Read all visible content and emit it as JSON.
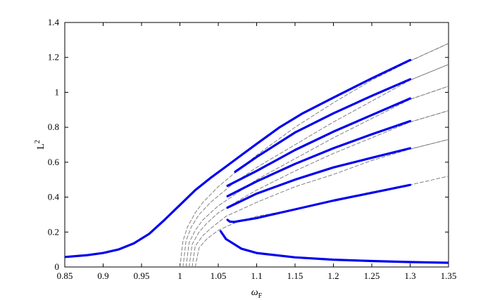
{
  "chart_data": {
    "type": "line",
    "xlabel": "ω",
    "xlabel_sub": "F",
    "ylabel": "L",
    "ylabel_sup": "2",
    "xlim": [
      0.85,
      1.35
    ],
    "ylim": [
      0,
      1.4
    ],
    "grid": false,
    "x_ticks": [
      "0.85",
      "0.9",
      "0.95",
      "1",
      "1.05",
      "1.1",
      "1.15",
      "1.2",
      "1.25",
      "1.3",
      "1.35"
    ],
    "y_ticks": [
      "0",
      "0.2",
      "0.4",
      "0.6",
      "0.8",
      "1",
      "1.2",
      "1.4"
    ],
    "colors": {
      "solid": "#0000ee",
      "dashed": "#808080"
    },
    "series": [
      {
        "style": "solid",
        "points": [
          [
            0.85,
            0.057
          ],
          [
            0.88,
            0.068
          ],
          [
            0.9,
            0.08
          ],
          [
            0.92,
            0.1
          ],
          [
            0.94,
            0.135
          ],
          [
            0.96,
            0.19
          ],
          [
            0.98,
            0.27
          ],
          [
            1.0,
            0.355
          ],
          [
            1.02,
            0.44
          ],
          [
            1.04,
            0.51
          ],
          [
            1.06,
            0.575
          ],
          [
            1.08,
            0.64
          ],
          [
            1.1,
            0.705
          ],
          [
            1.13,
            0.8
          ],
          [
            1.16,
            0.88
          ],
          [
            1.2,
            0.97
          ],
          [
            1.25,
            1.08
          ],
          [
            1.3,
            1.185
          ]
        ]
      },
      {
        "style": "solid",
        "points": [
          [
            1.072,
            0.545
          ],
          [
            1.1,
            0.63
          ],
          [
            1.15,
            0.77
          ],
          [
            1.2,
            0.88
          ],
          [
            1.25,
            0.98
          ],
          [
            1.3,
            1.075
          ]
        ]
      },
      {
        "style": "solid",
        "points": [
          [
            1.062,
            0.465
          ],
          [
            1.1,
            0.55
          ],
          [
            1.15,
            0.67
          ],
          [
            1.2,
            0.775
          ],
          [
            1.25,
            0.87
          ],
          [
            1.3,
            0.965
          ]
        ]
      },
      {
        "style": "solid",
        "points": [
          [
            1.062,
            0.405
          ],
          [
            1.1,
            0.49
          ],
          [
            1.15,
            0.59
          ],
          [
            1.2,
            0.68
          ],
          [
            1.25,
            0.76
          ],
          [
            1.3,
            0.835
          ]
        ]
      },
      {
        "style": "solid",
        "points": [
          [
            1.062,
            0.34
          ],
          [
            1.1,
            0.42
          ],
          [
            1.15,
            0.5
          ],
          [
            1.2,
            0.57
          ],
          [
            1.25,
            0.625
          ],
          [
            1.3,
            0.68
          ]
        ]
      },
      {
        "style": "solid",
        "points": [
          [
            1.062,
            0.27
          ],
          [
            1.065,
            0.26
          ],
          [
            1.07,
            0.258
          ],
          [
            1.1,
            0.28
          ],
          [
            1.15,
            0.33
          ],
          [
            1.2,
            0.38
          ],
          [
            1.25,
            0.425
          ],
          [
            1.3,
            0.47
          ]
        ]
      },
      {
        "style": "solid",
        "points": [
          [
            1.053,
            0.205
          ],
          [
            1.06,
            0.16
          ],
          [
            1.08,
            0.105
          ],
          [
            1.1,
            0.08
          ],
          [
            1.15,
            0.055
          ],
          [
            1.2,
            0.042
          ],
          [
            1.25,
            0.034
          ],
          [
            1.3,
            0.028
          ],
          [
            1.35,
            0.024
          ]
        ]
      },
      {
        "style": "dashed",
        "points": [
          [
            1.3,
            1.18
          ],
          [
            1.35,
            1.28
          ]
        ]
      },
      {
        "style": "dashed",
        "points": [
          [
            1.3,
            1.07
          ],
          [
            1.35,
            1.16
          ]
        ]
      },
      {
        "style": "dashed",
        "points": [
          [
            1.3,
            0.96
          ],
          [
            1.35,
            1.035
          ]
        ]
      },
      {
        "style": "dashed",
        "points": [
          [
            1.3,
            0.83
          ],
          [
            1.35,
            0.895
          ]
        ]
      },
      {
        "style": "dashed",
        "points": [
          [
            1.3,
            0.675
          ],
          [
            1.35,
            0.73
          ]
        ]
      },
      {
        "style": "dashed",
        "points": [
          [
            1.0,
            0.0
          ],
          [
            1.004,
            0.15
          ],
          [
            1.01,
            0.23
          ],
          [
            1.02,
            0.31
          ],
          [
            1.03,
            0.37
          ],
          [
            1.05,
            0.46
          ],
          [
            1.08,
            0.57
          ],
          [
            1.1,
            0.64
          ],
          [
            1.15,
            0.8
          ],
          [
            1.2,
            0.94
          ],
          [
            1.25,
            1.07
          ],
          [
            1.3,
            1.18
          ],
          [
            1.35,
            1.28
          ]
        ]
      },
      {
        "style": "dashed",
        "points": [
          [
            1.004,
            0.0
          ],
          [
            1.008,
            0.15
          ],
          [
            1.015,
            0.23
          ],
          [
            1.025,
            0.3
          ],
          [
            1.04,
            0.37
          ],
          [
            1.07,
            0.48
          ],
          [
            1.1,
            0.57
          ],
          [
            1.15,
            0.7
          ],
          [
            1.2,
            0.83
          ],
          [
            1.25,
            0.95
          ],
          [
            1.3,
            1.07
          ],
          [
            1.35,
            1.16
          ]
        ]
      },
      {
        "style": "dashed",
        "points": [
          [
            1.008,
            0.0
          ],
          [
            1.012,
            0.14
          ],
          [
            1.02,
            0.21
          ],
          [
            1.03,
            0.27
          ],
          [
            1.05,
            0.35
          ],
          [
            1.08,
            0.44
          ],
          [
            1.1,
            0.5
          ],
          [
            1.15,
            0.62
          ],
          [
            1.2,
            0.74
          ],
          [
            1.25,
            0.85
          ],
          [
            1.3,
            0.96
          ],
          [
            1.35,
            1.035
          ]
        ]
      },
      {
        "style": "dashed",
        "points": [
          [
            1.012,
            0.0
          ],
          [
            1.016,
            0.13
          ],
          [
            1.025,
            0.2
          ],
          [
            1.035,
            0.25
          ],
          [
            1.05,
            0.31
          ],
          [
            1.08,
            0.39
          ],
          [
            1.1,
            0.44
          ],
          [
            1.15,
            0.55
          ],
          [
            1.2,
            0.65
          ],
          [
            1.25,
            0.74
          ],
          [
            1.3,
            0.83
          ],
          [
            1.35,
            0.895
          ]
        ]
      },
      {
        "style": "dashed",
        "points": [
          [
            1.016,
            0.0
          ],
          [
            1.02,
            0.12
          ],
          [
            1.03,
            0.18
          ],
          [
            1.04,
            0.22
          ],
          [
            1.06,
            0.29
          ],
          [
            1.08,
            0.33
          ],
          [
            1.1,
            0.37
          ],
          [
            1.15,
            0.46
          ],
          [
            1.2,
            0.53
          ],
          [
            1.25,
            0.61
          ],
          [
            1.3,
            0.675
          ],
          [
            1.35,
            0.73
          ]
        ]
      },
      {
        "style": "dashed",
        "points": [
          [
            1.02,
            0.0
          ],
          [
            1.025,
            0.11
          ],
          [
            1.035,
            0.16
          ],
          [
            1.05,
            0.21
          ],
          [
            1.07,
            0.25
          ],
          [
            1.1,
            0.29
          ],
          [
            1.15,
            0.33
          ],
          [
            1.2,
            0.38
          ],
          [
            1.25,
            0.43
          ],
          [
            1.3,
            0.47
          ],
          [
            1.35,
            0.52
          ]
        ]
      }
    ]
  }
}
